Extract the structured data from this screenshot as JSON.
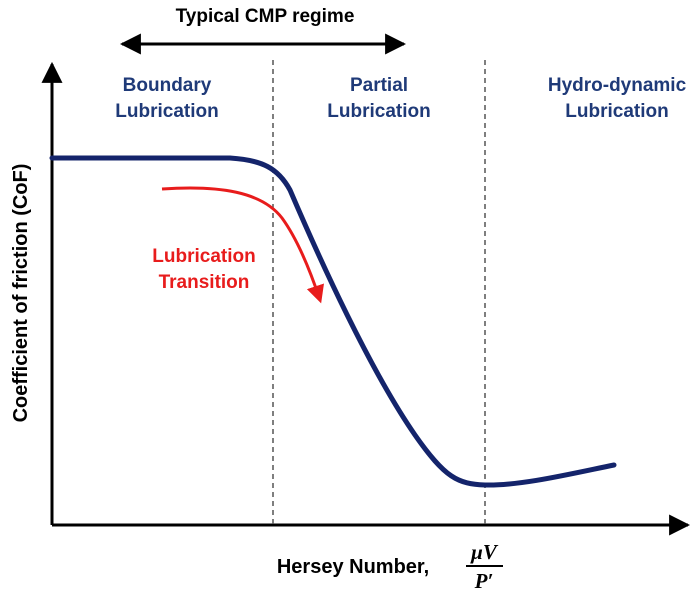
{
  "header": {
    "regime_label": "Typical CMP regime"
  },
  "axes": {
    "ylabel": "Coefficient of friction (CoF)",
    "xlabel": "Hersey Number,",
    "xlabel_fraction": {
      "numerator": "μV",
      "denominator": "P′"
    }
  },
  "regions": [
    {
      "line1": "Boundary",
      "line2": "Lubrication"
    },
    {
      "line1": "Partial",
      "line2": "Lubrication"
    },
    {
      "line1": "Hydro-dynamic",
      "line2": "Lubrication"
    }
  ],
  "annotation": {
    "line1": "Lubrication",
    "line2": "Transition"
  },
  "colors": {
    "curve": "#14246b",
    "region_text": "#1f3a78",
    "annotation": "#e81c1c",
    "axis": "#000000",
    "divider": "#555555"
  }
}
